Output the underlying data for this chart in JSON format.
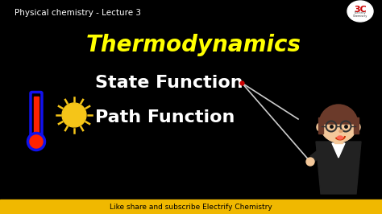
{
  "background_color": "#000000",
  "subtitle_text": "Physical chemistry - Lecture 3",
  "subtitle_color": "#ffffff",
  "subtitle_fontsize": 7.5,
  "title_text": "Thermodynamics",
  "title_color": "#ffff00",
  "title_fontsize": 20,
  "line1_text": "State Function",
  "line2_text": "Path Function",
  "lines_color": "#ffffff",
  "lines_fontsize": 16,
  "footer_text": "Like share and subscribe Electrify Chemistry",
  "footer_bg": "#f0b800",
  "footer_color": "#000000",
  "footer_fontsize": 6.5,
  "logo_bg": "#ffffff",
  "logo_text": "3C",
  "logo_color": "#cc0000",
  "thermometer_bulb_color": "#ff2200",
  "thermometer_tube_color": "#1111ee",
  "sun_color": "#f5c518",
  "pointer_dot_color": "#cc0000",
  "pointer_line_color": "#cccccc",
  "teacher_skin": "#f4c89a",
  "teacher_hair": "#6b3a2a",
  "teacher_suit": "#222222",
  "teacher_glasses": "#333333"
}
